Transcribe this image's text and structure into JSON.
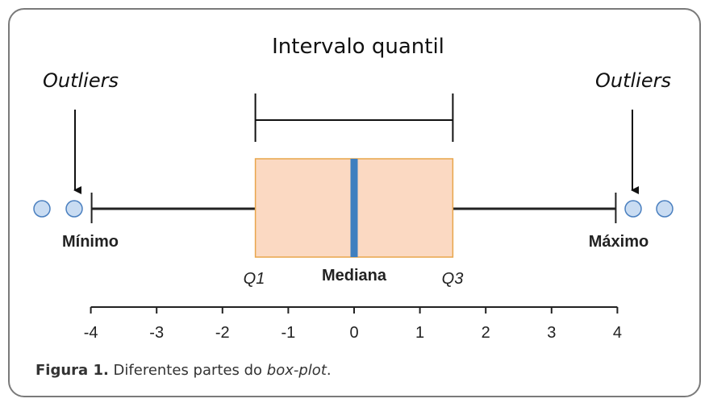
{
  "title": "Intervalo quantil",
  "outliers_label_left": "Outliers",
  "outliers_label_right": "Outliers",
  "minimo_label": "Mínimo",
  "maximo_label": "Máximo",
  "q1_label": "Q1",
  "mediana_label": "Mediana",
  "q3_label": "Q3",
  "caption": {
    "figure": "Figura 1.",
    "text": " Diferentes partes do ",
    "italic": "box-plot",
    "end": "."
  },
  "colors": {
    "box_fill": "#fbd9c2",
    "box_stroke": "#e8a54b",
    "median": "#3f7fbf",
    "outlier_fill": "#c9dcf2",
    "outlier_stroke": "#4a7fbf",
    "frame": "#7a7a7a"
  },
  "chart_data": {
    "type": "boxplot",
    "axis": {
      "ticks": [
        -4,
        -3,
        -2,
        -1,
        0,
        1,
        2,
        3,
        4
      ],
      "range": [
        -4,
        4
      ]
    },
    "whisker_min": -4,
    "q1": -1.5,
    "median": 0,
    "q3": 1.5,
    "whisker_max": 4,
    "outliers": [
      -4.8,
      -4.3,
      4.3,
      4.8
    ]
  }
}
